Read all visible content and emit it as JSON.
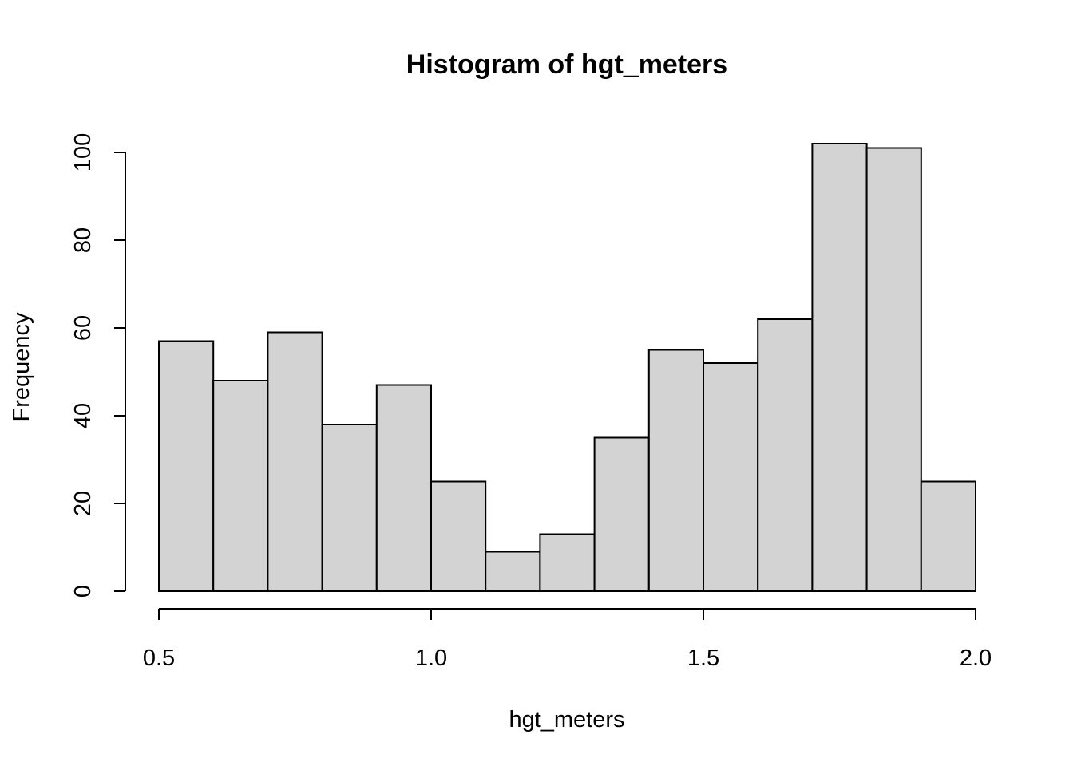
{
  "chart_data": {
    "type": "bar",
    "title": "Histogram of hgt_meters",
    "xlabel": "hgt_meters",
    "ylabel": "Frequency",
    "bins": [
      {
        "start": 0.5,
        "end": 0.6,
        "count": 57
      },
      {
        "start": 0.6,
        "end": 0.7,
        "count": 48
      },
      {
        "start": 0.7,
        "end": 0.8,
        "count": 59
      },
      {
        "start": 0.8,
        "end": 0.9,
        "count": 38
      },
      {
        "start": 0.9,
        "end": 1.0,
        "count": 47
      },
      {
        "start": 1.0,
        "end": 1.1,
        "count": 25
      },
      {
        "start": 1.1,
        "end": 1.2,
        "count": 9
      },
      {
        "start": 1.2,
        "end": 1.3,
        "count": 13
      },
      {
        "start": 1.3,
        "end": 1.4,
        "count": 35
      },
      {
        "start": 1.4,
        "end": 1.5,
        "count": 55
      },
      {
        "start": 1.5,
        "end": 1.6,
        "count": 52
      },
      {
        "start": 1.6,
        "end": 1.7,
        "count": 62
      },
      {
        "start": 1.7,
        "end": 1.8,
        "count": 102
      },
      {
        "start": 1.8,
        "end": 1.9,
        "count": 101
      },
      {
        "start": 1.9,
        "end": 2.0,
        "count": 25
      }
    ],
    "xlim": [
      0.5,
      2.0
    ],
    "ylim": [
      0,
      100
    ],
    "x_ticks": [
      0.5,
      1.0,
      1.5,
      2.0
    ],
    "x_tick_labels": [
      "0.5",
      "1.0",
      "1.5",
      "2.0"
    ],
    "y_ticks": [
      0,
      20,
      40,
      60,
      80,
      100
    ],
    "y_tick_labels": [
      "0",
      "20",
      "40",
      "60",
      "80",
      "100"
    ],
    "grid": false,
    "legend": "none",
    "bar_color": "#d3d3d3",
    "edge_color": "#000000"
  }
}
